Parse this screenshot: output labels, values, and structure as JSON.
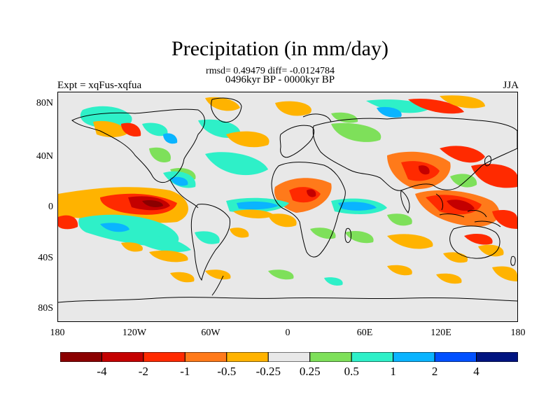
{
  "title": "Precipitation (in mm/day)",
  "stats_line": "rmsd= 0.49479 diff= -0.0124784",
  "period_line": "0496kyr BP - 0000kyr BP",
  "experiment_label": "Expt = xqFus-xqfua",
  "season_label": "JJA",
  "lat_ticks": [
    "80N",
    "40N",
    "0",
    "40S",
    "80S"
  ],
  "lon_ticks": [
    "180",
    "120W",
    "60W",
    "0",
    "60E",
    "120E",
    "180"
  ],
  "colorbar": {
    "colors": [
      "#8b0000",
      "#c40000",
      "#ff2a00",
      "#ff7a1a",
      "#ffb300",
      "#e8e8e8",
      "#7ee05a",
      "#2ef0c8",
      "#0ab4ff",
      "#0050ff",
      "#001480"
    ],
    "labels": [
      "-4",
      "-2",
      "-1",
      "-0.5",
      "-0.25",
      "0.25",
      "0.5",
      "1",
      "2",
      "4"
    ]
  },
  "map_fill": {
    "background_color": "#e8e8e8",
    "coastline_color": "#000000"
  }
}
